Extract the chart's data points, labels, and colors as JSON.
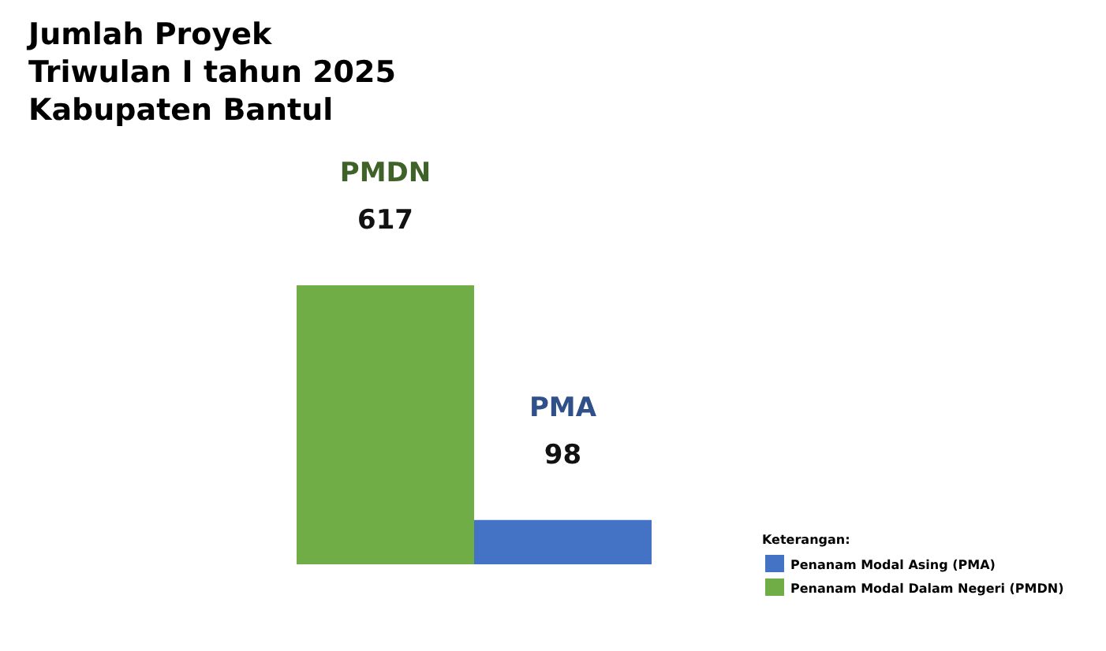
{
  "chart_data": {
    "type": "bar",
    "title": "Jumlah Proyek\nTriwulan I tahun 2025\nKabupaten Bantul",
    "categories": [
      null,
      null
    ],
    "values": [
      617,
      98
    ],
    "colors": [
      "#70ad47",
      "#4472c4"
    ],
    "annotations": [
      "PMDN",
      "PMA",
      "Penanam Modal Asing (PMA)",
      "Penanam Modal Dalam Negeri (PMDN)"
    ],
    "data_labels": true,
    "legend_title": "Keterangan:"
  }
}
